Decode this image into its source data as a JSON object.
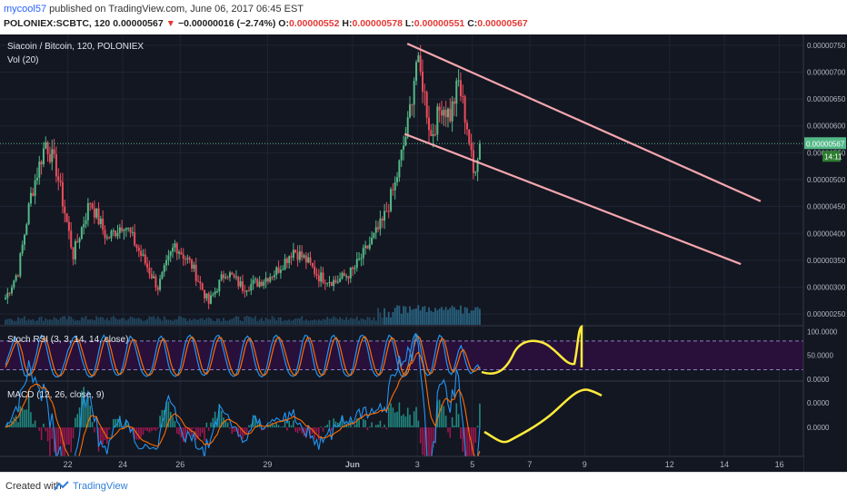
{
  "header": {
    "user": "mycool57",
    "published": " published on TradingView.com, June 06, 2017 06:45 EST",
    "symbol": "POLONIEX:SCBTC, 120 ",
    "last": "0.00000567",
    "change": "−0.00000016 (−2.74%)",
    "o_label": "O:",
    "o_value": "0.00000552",
    "h_label": "H:",
    "h_value": "0.00000578",
    "l_label": "L:",
    "l_value": "0.00000551",
    "c_label": "C:",
    "c_value": "0.00000567"
  },
  "colors": {
    "up": "#53b987",
    "down": "#eb4d5c",
    "trend": "#f4a6ae",
    "drawn": "#ffeb3b",
    "stoch_k": "#2196f3",
    "stoch_d": "#ff6d00",
    "rsi_band": "#2b0f3d"
  },
  "chart_data": [
    {
      "type": "candlestick",
      "title": "Siacoin / Bitcoin, 120, POLONIEX",
      "indicator": "Vol (20)",
      "ylim": [
        2.3e-06,
        7.7e-06
      ],
      "yticks": [
        "0.00000750",
        "0.00000700",
        "0.00000650",
        "0.00000600",
        "0.00000550",
        "0.00000500",
        "0.00000450",
        "0.00000400",
        "0.00000350",
        "0.00000300",
        "0.00000250"
      ],
      "last_price_label": "0.00000567",
      "countdown_label": "14:11",
      "last_price": 5.67e-06,
      "xticks": [
        "22",
        "24",
        "26",
        "29",
        "Jun",
        "3",
        "5",
        "7",
        "9",
        "12",
        "14",
        "16"
      ],
      "waypoints": [
        [
          0,
          2.8e-06
        ],
        [
          6,
          3.3e-06
        ],
        [
          12,
          4.7e-06
        ],
        [
          19,
          5.7e-06
        ],
        [
          24,
          5.2e-06
        ],
        [
          32,
          3.6e-06
        ],
        [
          40,
          4.6e-06
        ],
        [
          48,
          3.9e-06
        ],
        [
          56,
          4.2e-06
        ],
        [
          64,
          3.6e-06
        ],
        [
          72,
          3e-06
        ],
        [
          80,
          3.8e-06
        ],
        [
          88,
          3.4e-06
        ],
        [
          96,
          2.7e-06
        ],
        [
          104,
          3.3e-06
        ],
        [
          112,
          3e-06
        ],
        [
          120,
          3.1e-06
        ],
        [
          128,
          3.3e-06
        ],
        [
          136,
          3.7e-06
        ],
        [
          142,
          3.5e-06
        ],
        [
          148,
          3.2e-06
        ],
        [
          156,
          3.1e-06
        ],
        [
          164,
          3.3e-06
        ],
        [
          172,
          3.8e-06
        ],
        [
          178,
          4.2e-06
        ],
        [
          184,
          4.9e-06
        ],
        [
          190,
          6e-06
        ],
        [
          194,
          7.2e-06
        ],
        [
          197,
          6.8e-06
        ],
        [
          201,
          5.8e-06
        ],
        [
          206,
          6.4e-06
        ],
        [
          210,
          6.2e-06
        ],
        [
          214,
          6.8e-06
        ],
        [
          218,
          6e-06
        ],
        [
          221,
          5.1e-06
        ],
        [
          224,
          5.7e-06
        ]
      ],
      "trendlines": [
        {
          "from": [
            "Jun 3 10:00",
            7.53e-06
          ],
          "to": [
            "Jun 12 08:00",
            4.6e-06
          ]
        },
        {
          "from": [
            "Jun 2 22:00",
            5.85e-06
          ],
          "to": [
            "Jun 11 20:00",
            3.43e-06
          ]
        }
      ]
    },
    {
      "type": "line",
      "title": "Stoch RSI (3, 3, 14, 14, close)",
      "ylim": [
        0,
        110
      ],
      "yticks": [
        "100.0000",
        "50.0000",
        "0.0000"
      ],
      "bands": [
        20,
        80
      ],
      "series": [
        {
          "color_key": "stoch_k",
          "values": [
            30,
            45,
            60,
            75,
            88,
            75,
            50,
            25,
            8,
            6,
            10,
            20,
            35,
            55,
            80,
            92,
            88,
            70,
            45,
            25,
            10,
            5,
            5,
            10,
            25,
            40,
            60,
            70,
            85,
            90,
            80,
            60,
            40,
            25,
            10,
            5,
            5,
            15,
            35,
            60,
            82,
            92,
            85,
            65,
            40,
            20,
            10,
            8,
            12,
            28,
            50,
            75,
            90,
            85,
            70,
            50,
            30,
            15,
            8,
            6,
            10,
            20,
            40,
            65,
            85,
            90,
            80,
            55,
            30,
            15,
            8,
            6,
            10,
            25,
            50,
            75,
            88,
            92,
            85,
            65,
            40,
            20,
            10,
            8,
            15,
            35,
            60,
            80,
            90,
            92,
            80,
            60,
            40,
            20,
            10,
            6,
            8,
            20,
            45,
            70,
            85,
            90,
            82,
            60,
            35,
            18,
            8,
            5,
            10,
            25,
            50,
            72,
            88,
            92,
            85,
            70,
            50,
            30,
            15,
            8,
            6,
            10,
            30,
            55,
            80,
            92,
            90,
            75,
            50,
            25,
            10,
            5,
            8,
            20,
            45,
            70,
            88,
            92,
            82,
            60,
            35,
            15,
            8,
            6,
            10,
            25,
            50,
            75,
            90,
            92,
            85,
            65,
            40,
            20,
            10,
            6,
            10,
            30,
            55,
            80,
            92,
            88,
            70,
            45,
            20,
            8,
            5,
            10,
            30,
            60,
            85,
            95,
            90,
            70,
            40,
            15,
            8,
            10,
            25,
            50,
            78,
            92,
            88,
            65,
            35,
            15,
            10,
            20,
            40,
            60,
            70,
            55,
            35,
            20,
            12,
            15,
            25,
            30,
            20
          ]
        },
        {
          "color_key": "stoch_d",
          "values": [
            25,
            35,
            48,
            62,
            74,
            80,
            72,
            55,
            30,
            15,
            8,
            12,
            22,
            37,
            57,
            75,
            86,
            85,
            68,
            47,
            27,
            13,
            7,
            7,
            13,
            25,
            42,
            56,
            71,
            81,
            85,
            77,
            60,
            42,
            25,
            13,
            7,
            8,
            18,
            37,
            59,
            78,
            86,
            81,
            63,
            42,
            23,
            12,
            10,
            16,
            30,
            51,
            72,
            83,
            82,
            68,
            50,
            32,
            18,
            10,
            8,
            12,
            24,
            42,
            63,
            80,
            85,
            75,
            55,
            33,
            18,
            10,
            8,
            14,
            28,
            50,
            71,
            85,
            88,
            81,
            63,
            42,
            23,
            13,
            11,
            19,
            37,
            58,
            77,
            87,
            87,
            77,
            60,
            40,
            23,
            12,
            8,
            11,
            24,
            45,
            67,
            82,
            86,
            77,
            59,
            38,
            20,
            10,
            8,
            13,
            28,
            49,
            70,
            84,
            88,
            82,
            68,
            50,
            32,
            18,
            10,
            8,
            15,
            32,
            55,
            76,
            87,
            86,
            72,
            50,
            28,
            13,
            8,
            11,
            24,
            45,
            68,
            83,
            87,
            78,
            59,
            37,
            19,
            10,
            8,
            14,
            28,
            50,
            72,
            86,
            89,
            81,
            63,
            42,
            23,
            12,
            9,
            15,
            32,
            55,
            76,
            87,
            84,
            68,
            45,
            24,
            11,
            8,
            15,
            35,
            60,
            80,
            90,
            85,
            65,
            42,
            21,
            11,
            14,
            28,
            51,
            73,
            86,
            82,
            63,
            38,
            20,
            15,
            25,
            40,
            57,
            62,
            53,
            37,
            22,
            16,
            17,
            23,
            25
          ]
        }
      ]
    },
    {
      "type": "line",
      "title": "MACD (12, 26, close, 9)",
      "ylim": [
        -3.5e-07,
        5.5e-07
      ],
      "yticks": [
        "0.0000",
        "0.0000"
      ]
    }
  ]
}
